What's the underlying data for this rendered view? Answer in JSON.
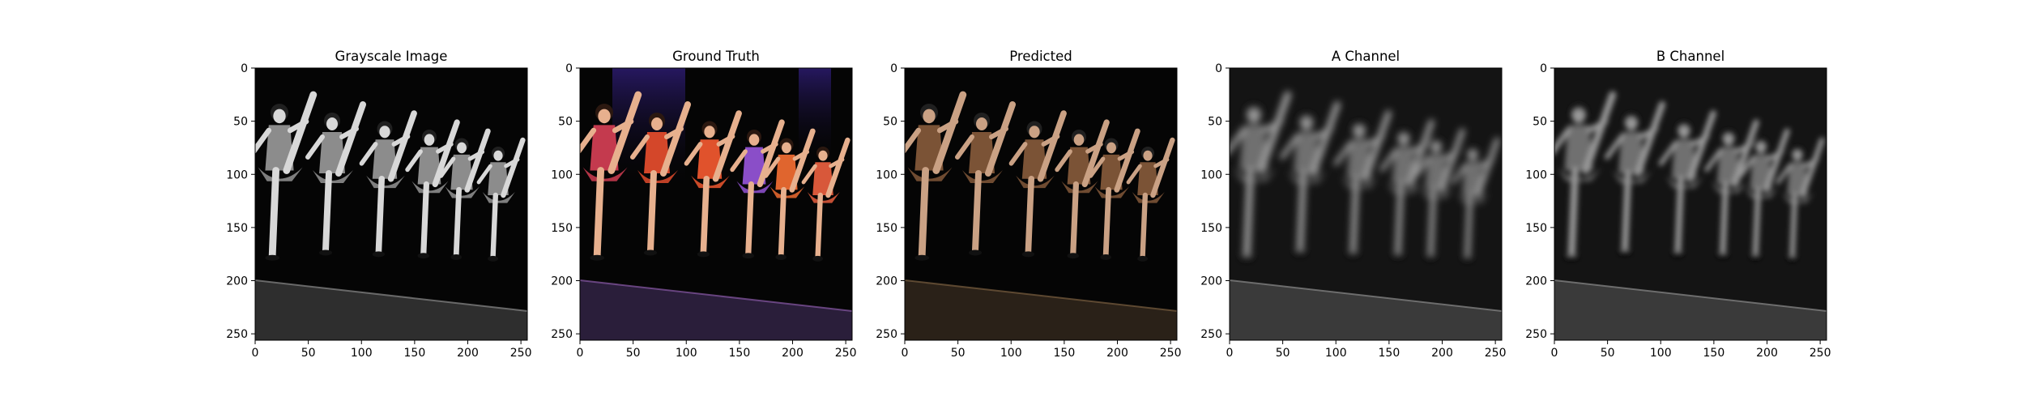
{
  "figure": {
    "panels": [
      {
        "title": "Grayscale Image",
        "mode": "gray"
      },
      {
        "title": "Ground Truth",
        "mode": "color"
      },
      {
        "title": "Predicted",
        "mode": "pred"
      },
      {
        "title": "A Channel",
        "mode": "blur"
      },
      {
        "title": "B Channel",
        "mode": "blur2"
      }
    ],
    "x_ticks": [
      "0",
      "50",
      "100",
      "150",
      "200",
      "250"
    ],
    "y_ticks": [
      "0",
      "50",
      "100",
      "150",
      "200",
      "250"
    ],
    "pixel_range": [
      0,
      256
    ]
  }
}
